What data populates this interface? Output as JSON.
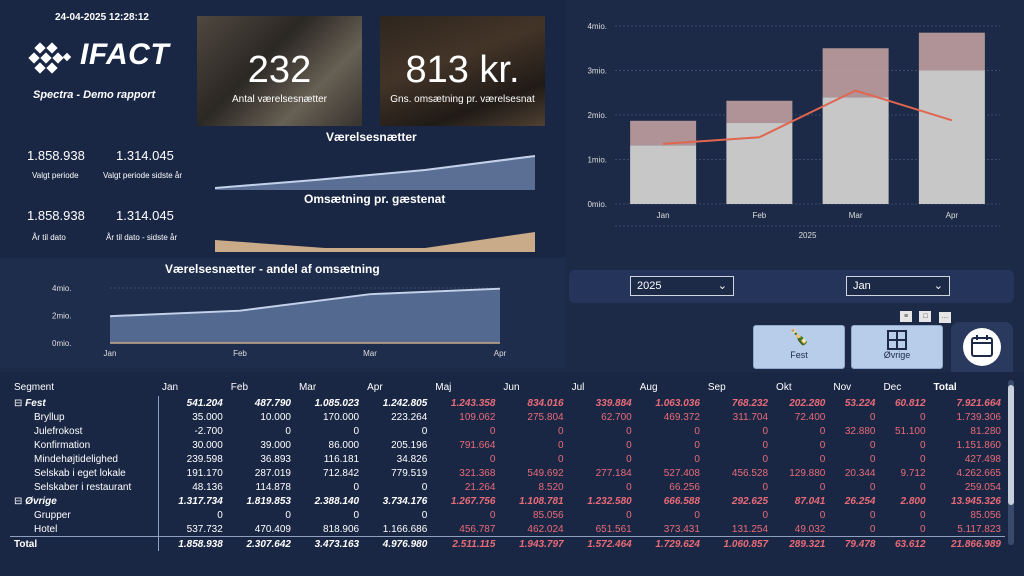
{
  "timestamp": "24-04-2025 12:28:12",
  "brand": {
    "name": "IFACT",
    "subtitle": "Spectra - Demo rapport"
  },
  "cards": [
    {
      "value": "232",
      "label": "Antal værelsesnætter"
    },
    {
      "value": "813 kr.",
      "label": "Gns. omsætning pr. værelsesnat"
    }
  ],
  "kpis": [
    {
      "value": "1.858.938",
      "label": "Valgt periode"
    },
    {
      "value": "1.314.045",
      "label": "Valgt periode sidste år"
    },
    {
      "value": "1.858.938",
      "label": "År til dato"
    },
    {
      "value": "1.314.045",
      "label": "År til dato - sidste år"
    }
  ],
  "spark_titles": {
    "a": "Værelsesnætter",
    "b": "Omsætning pr. gæstenat"
  },
  "colors": {
    "bg": "#1c2a47",
    "panel": "#1a2744",
    "bar": "#c7c7c7",
    "bar_top": "#c9a6a4",
    "line": "#e0664f",
    "area_blue": "#c3d2ea",
    "area_tan": "#c9ab89",
    "red_text": "#e96b78"
  },
  "chart_data": [
    {
      "type": "bar",
      "title": "",
      "categories": [
        "Jan",
        "Feb",
        "Mar",
        "Apr"
      ],
      "series": [
        {
          "values": [
            1.32,
            1.82,
            2.4,
            3.0
          ]
        },
        {
          "values": [
            0.55,
            0.5,
            1.1,
            0.85
          ]
        },
        {
          "values": [
            1.35,
            1.5,
            2.55,
            1.88
          ]
        }
      ],
      "y_ticks": [
        "0mio.",
        "1mio.",
        "2mio.",
        "3mio.",
        "4mio."
      ],
      "ylim": [
        0,
        4
      ],
      "xlabel": "2025"
    },
    {
      "type": "area",
      "title": "Værelsesnætter - andel af omsætning",
      "categories": [
        "Jan",
        "Feb",
        "Mar",
        "Apr"
      ],
      "series": [
        {
          "values": [
            1.95,
            2.35,
            3.55,
            3.95
          ]
        }
      ],
      "y_ticks": [
        "0mio.",
        "2mio.",
        "4mio."
      ],
      "ylim": [
        0,
        4
      ]
    }
  ],
  "filters": {
    "year": "2025",
    "month": "Jan"
  },
  "buttons": {
    "fest": "Fest",
    "ovrige": "Øvrige"
  },
  "matrix": {
    "headers": [
      "Segment",
      "Jan",
      "Feb",
      "Mar",
      "Apr",
      "Maj",
      "Jun",
      "Jul",
      "Aug",
      "Sep",
      "Okt",
      "Nov",
      "Dec",
      "Total"
    ],
    "rows": [
      {
        "type": "group",
        "label": "Fest",
        "values": [
          "541.204",
          "487.790",
          "1.085.023",
          "1.242.805",
          "1.243.358",
          "834.016",
          "339.884",
          "1.063.036",
          "768.232",
          "202.280",
          "53.224",
          "60.812",
          "7.921.664"
        ]
      },
      {
        "type": "child",
        "label": "Bryllup",
        "values": [
          "35.000",
          "10.000",
          "170.000",
          "223.264",
          "109.062",
          "275.804",
          "62.700",
          "469.372",
          "311.704",
          "72.400",
          "0",
          "0",
          "1.739.306"
        ]
      },
      {
        "type": "child",
        "label": "Julefrokost",
        "values": [
          "-2.700",
          "0",
          "0",
          "0",
          "0",
          "0",
          "0",
          "0",
          "0",
          "0",
          "32.880",
          "51.100",
          "81.280"
        ]
      },
      {
        "type": "child",
        "label": "Konfirmation",
        "values": [
          "30.000",
          "39.000",
          "86.000",
          "205.196",
          "791.664",
          "0",
          "0",
          "0",
          "0",
          "0",
          "0",
          "0",
          "1.151.860"
        ]
      },
      {
        "type": "child",
        "label": "Mindehøjtidelighed",
        "values": [
          "239.598",
          "36.893",
          "116.181",
          "34.826",
          "0",
          "0",
          "0",
          "0",
          "0",
          "0",
          "0",
          "0",
          "427.498"
        ]
      },
      {
        "type": "child",
        "label": "Selskab i eget lokale",
        "values": [
          "191.170",
          "287.019",
          "712.842",
          "779.519",
          "321.368",
          "549.692",
          "277.184",
          "527.408",
          "456.528",
          "129.880",
          "20.344",
          "9.712",
          "4.262.665"
        ]
      },
      {
        "type": "child",
        "label": "Selskaber i restaurant",
        "values": [
          "48.136",
          "114.878",
          "0",
          "0",
          "21.264",
          "8.520",
          "0",
          "66.256",
          "0",
          "0",
          "0",
          "0",
          "259.054"
        ]
      },
      {
        "type": "group",
        "label": "Øvrige",
        "values": [
          "1.317.734",
          "1.819.853",
          "2.388.140",
          "3.734.176",
          "1.267.756",
          "1.108.781",
          "1.232.580",
          "666.588",
          "292.625",
          "87.041",
          "26.254",
          "2.800",
          "13.945.326"
        ]
      },
      {
        "type": "child",
        "label": "Grupper",
        "values": [
          "0",
          "0",
          "0",
          "0",
          "0",
          "85.056",
          "0",
          "0",
          "0",
          "0",
          "0",
          "0",
          "85.056"
        ]
      },
      {
        "type": "child",
        "label": "Hotel",
        "values": [
          "537.732",
          "470.409",
          "818.906",
          "1.166.686",
          "456.787",
          "462.024",
          "651.561",
          "373.431",
          "131.254",
          "49.032",
          "0",
          "0",
          "5.117.823"
        ]
      }
    ],
    "total": {
      "label": "Total",
      "values": [
        "1.858.938",
        "2.307.642",
        "3.473.163",
        "4.976.980",
        "2.511.115",
        "1.943.797",
        "1.572.464",
        "1.729.624",
        "1.060.857",
        "289.321",
        "79.478",
        "63.612",
        "21.866.989"
      ]
    }
  }
}
